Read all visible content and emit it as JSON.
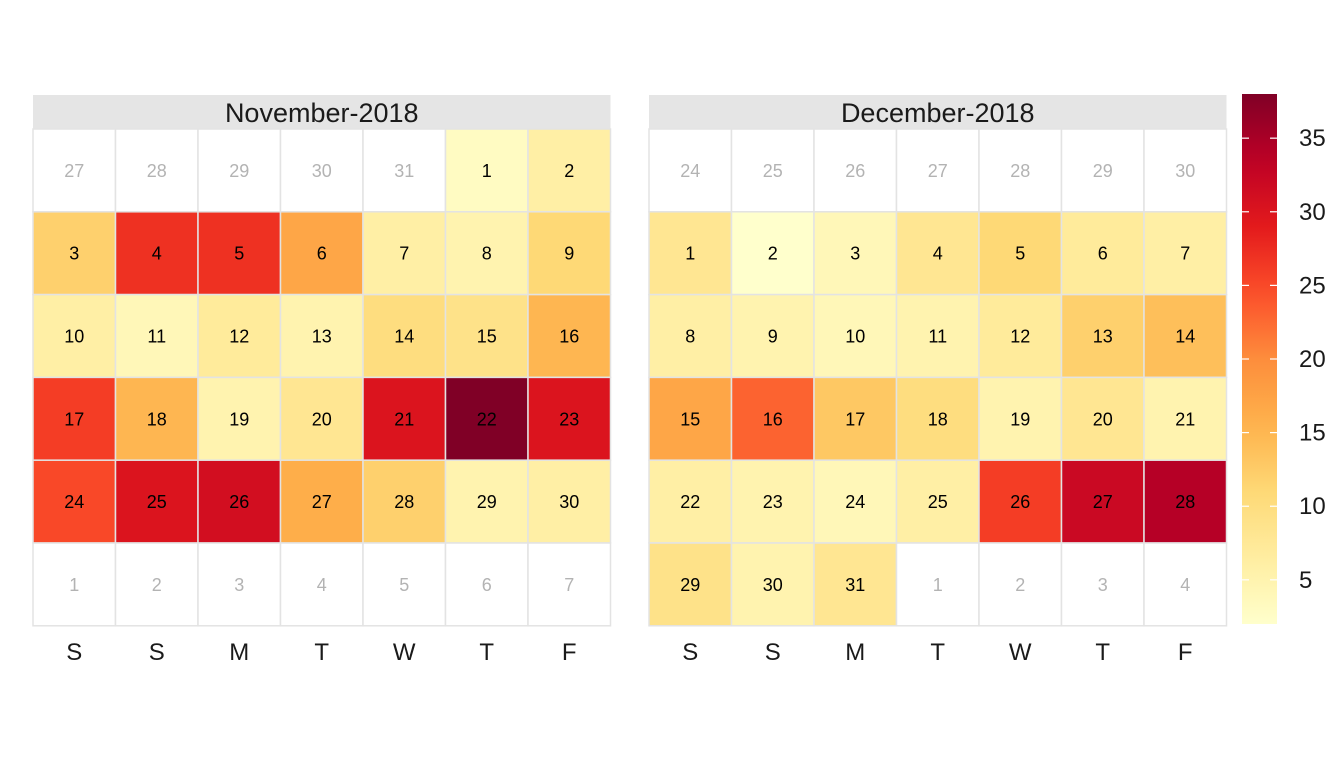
{
  "chart_data": {
    "type": "heatmap",
    "subtype": "calendar",
    "title": "",
    "xlabel": "",
    "ylabel": "",
    "grid": false,
    "colorscale": {
      "name": "YlOrRd",
      "range": [
        2,
        38
      ],
      "ticks": [
        5,
        10,
        15,
        20,
        25,
        30,
        35
      ],
      "position": "right"
    },
    "weekday_labels": [
      "S",
      "S",
      "M",
      "T",
      "W",
      "T",
      "F"
    ],
    "panels": [
      {
        "title": "November-2018",
        "leading_days": [
          27,
          28,
          29,
          30,
          31
        ],
        "trailing_days": [
          1,
          2,
          3,
          4,
          5,
          6,
          7
        ],
        "values": [
          3,
          6,
          12,
          27,
          27,
          17,
          6,
          5,
          11,
          6,
          4,
          7,
          5,
          10,
          9,
          15,
          26,
          15,
          5,
          8,
          30,
          38,
          30,
          25,
          30,
          31,
          16,
          12,
          5,
          6
        ]
      },
      {
        "title": "December-2018",
        "leading_days": [
          24,
          25,
          26,
          27,
          28,
          29,
          30
        ],
        "trailing_days": [
          1,
          2,
          3,
          4
        ],
        "values": [
          8,
          2,
          4,
          8,
          11,
          7,
          6,
          6,
          5,
          4,
          5,
          7,
          12,
          14,
          17,
          23,
          13,
          10,
          5,
          8,
          5,
          6,
          5,
          4,
          6,
          26,
          32,
          34,
          9,
          5,
          8
        ]
      }
    ]
  }
}
